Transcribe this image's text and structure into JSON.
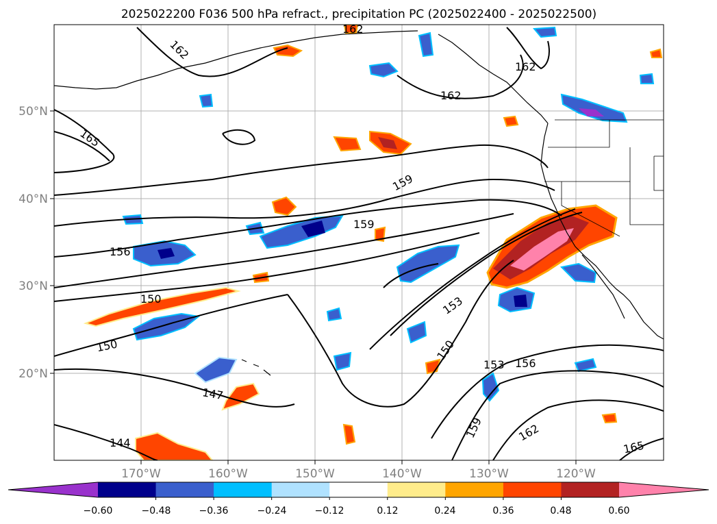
{
  "title": "2025022200 F036 500 hPa refract., precipitation PC (2025022400 - 2025022500)",
  "axes": {
    "lon_ticks": [
      "170°W",
      "160°W",
      "150°W",
      "140°W",
      "130°W",
      "120°W"
    ],
    "lat_ticks": [
      "50°N",
      "40°N",
      "30°N",
      "20°N"
    ],
    "tick_color": "#808080",
    "grid": true
  },
  "contour_labels": [
    "162",
    "162",
    "162",
    "162",
    "165",
    "159",
    "159",
    "156",
    "150",
    "150",
    "153",
    "150",
    "153",
    "156",
    "147",
    "159",
    "162",
    "144",
    "165"
  ],
  "colorbar": {
    "tick_labels": [
      "−0.60",
      "−0.48",
      "−0.36",
      "−0.24",
      "−0.12",
      "0.12",
      "0.24",
      "0.36",
      "0.48",
      "0.60"
    ],
    "bins": [
      "#9932cc",
      "#00008b",
      "#3a5fcd",
      "#00bfff",
      "#b0e2ff",
      "#ffffff",
      "#ffec8b",
      "#ffa500",
      "#ff4500",
      "#b22222",
      "#ff82ab"
    ]
  }
}
